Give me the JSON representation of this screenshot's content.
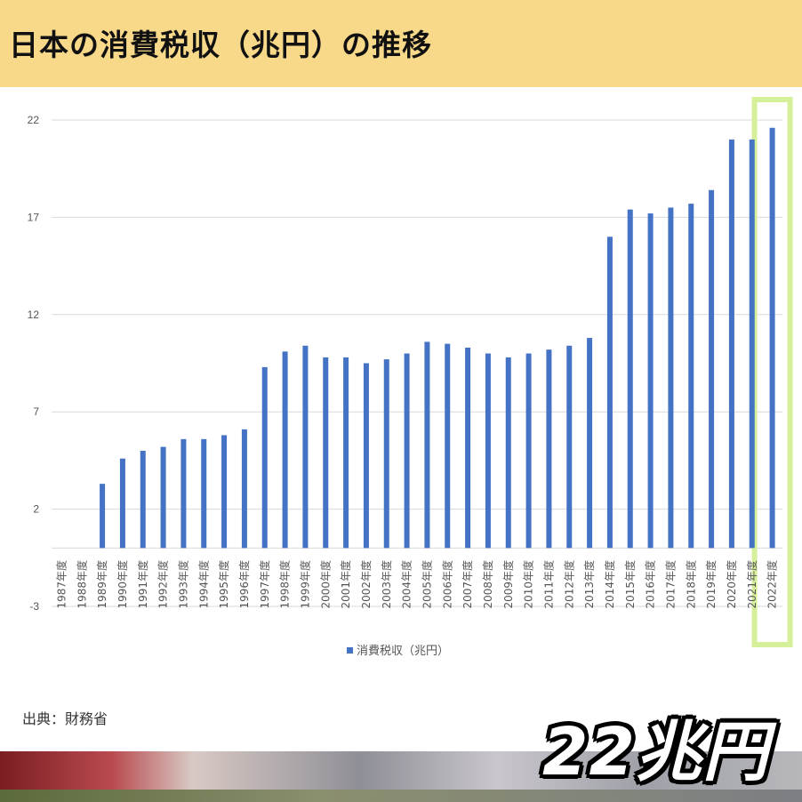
{
  "header": {
    "title": "日本の消費税収（兆円）の推移"
  },
  "source": "出典：財務省",
  "caption": "22兆円",
  "colors": {
    "header_bg": "#f8d98a",
    "bar": "#4472c4",
    "highlight": "#d6f09a"
  },
  "chart_data": {
    "type": "bar",
    "title": "",
    "xlabel": "",
    "ylabel": "",
    "ylim": [
      -3,
      22
    ],
    "yticks": [
      -3,
      2,
      7,
      12,
      17,
      22
    ],
    "grid": true,
    "legend": "bottom",
    "highlight_category": "2022年度",
    "categories": [
      "1987年度",
      "1988年度",
      "1989年度",
      "1990年度",
      "1991年度",
      "1992年度",
      "1993年度",
      "1994年度",
      "1995年度",
      "1996年度",
      "1997年度",
      "1998年度",
      "1999年度",
      "2000年度",
      "2001年度",
      "2002年度",
      "2003年度",
      "2004年度",
      "2005年度",
      "2006年度",
      "2007年度",
      "2008年度",
      "2009年度",
      "2010年度",
      "2011年度",
      "2012年度",
      "2013年度",
      "2014年度",
      "2015年度",
      "2016年度",
      "2017年度",
      "2018年度",
      "2019年度",
      "2020年度",
      "2021年度",
      "2022年度"
    ],
    "series": [
      {
        "name": "消費税収（兆円）",
        "values": [
          0,
          0,
          3.3,
          4.6,
          5.0,
          5.2,
          5.6,
          5.6,
          5.8,
          6.1,
          9.3,
          10.1,
          10.4,
          9.8,
          9.8,
          9.5,
          9.7,
          10.0,
          10.6,
          10.5,
          10.3,
          10.0,
          9.8,
          10.0,
          10.2,
          10.4,
          10.8,
          16.0,
          17.4,
          17.2,
          17.5,
          17.7,
          18.4,
          21.0,
          21.0,
          21.6
        ]
      }
    ]
  }
}
